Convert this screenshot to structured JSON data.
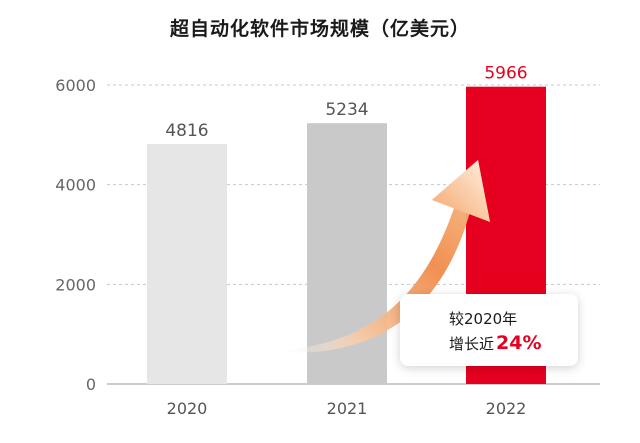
{
  "chart_data": {
    "type": "bar",
    "title": "超自动化软件市场规模（亿美元）",
    "categories": [
      "2020",
      "2021",
      "2022"
    ],
    "values": [
      4816,
      5234,
      5966
    ],
    "data_labels": [
      "4816",
      "5234",
      "5966"
    ],
    "ylim": [
      0,
      6000
    ],
    "yticks": [
      0,
      2000,
      4000,
      6000
    ],
    "ytick_labels": [
      "0",
      "2000",
      "4000",
      "6000"
    ],
    "grid": "dashed horizontal",
    "bar_colors": [
      "#e6e6e6",
      "#c9c9c9",
      "#e6001f"
    ],
    "label_colors": [
      "#555555",
      "#555555",
      "#e6001f"
    ]
  },
  "callout": {
    "line1": "较2020年",
    "line2": "增长近",
    "percent": "24%"
  }
}
